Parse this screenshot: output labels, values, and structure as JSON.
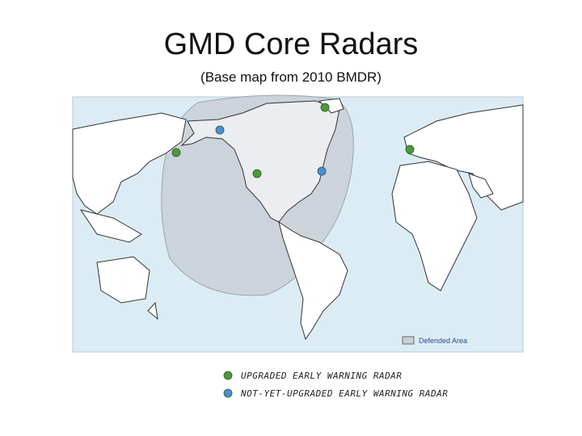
{
  "title": "GMD Core Radars",
  "subtitle": "(Base map from 2010 BMDR)",
  "map": {
    "legend": "Defended Area"
  },
  "legend": [
    {
      "label": "UPGRADED EARLY WARNING RADAR",
      "color": "#4c9a3a"
    },
    {
      "label": "NOT-YET-UPGRADED EARLY WARNING RADAR",
      "color": "#4b8fdc"
    }
  ]
}
